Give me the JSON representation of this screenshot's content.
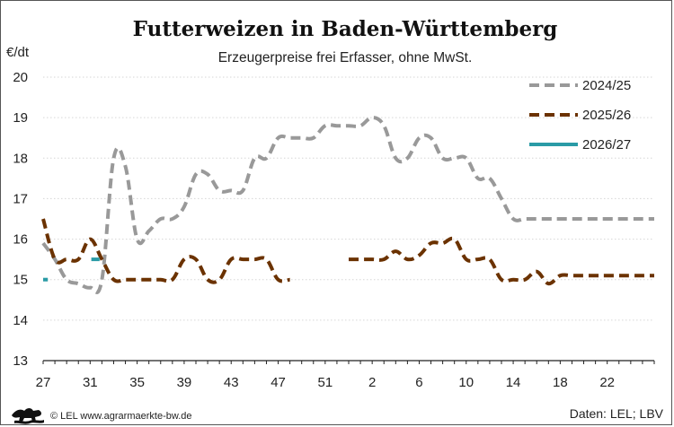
{
  "chart_data": {
    "type": "line",
    "title": "Futterweizen in Baden-Württemberg",
    "subtitle": "Erzeugerpreise frei Erfasser, ohne MwSt.",
    "ylabel": "€/dt",
    "ylim": [
      13,
      20
    ],
    "yticks": [
      13,
      14,
      15,
      16,
      17,
      18,
      19,
      20
    ],
    "xlabel": "",
    "x_index_range": [
      0,
      52
    ],
    "x_tick_indices": [
      0,
      4,
      8,
      12,
      16,
      20,
      24,
      28,
      32,
      36,
      40,
      44,
      48
    ],
    "x_tick_labels": [
      "27",
      "31",
      "35",
      "39",
      "43",
      "47",
      "51",
      "2",
      "6",
      "10",
      "14",
      "18",
      "22"
    ],
    "grid": "horizontal dotted",
    "legend_position": "top-right",
    "series": [
      {
        "name": "2024/25",
        "color": "#999999",
        "style": "dashed",
        "points": [
          [
            0,
            15.9
          ],
          [
            1,
            15.5
          ],
          [
            2,
            15.0
          ],
          [
            3,
            14.9
          ],
          [
            4,
            14.8
          ],
          [
            5,
            15.0
          ],
          [
            6,
            18.0
          ],
          [
            7,
            17.8
          ],
          [
            8,
            16.0
          ],
          [
            9,
            16.2
          ],
          [
            10,
            16.5
          ],
          [
            11,
            16.5
          ],
          [
            12,
            16.8
          ],
          [
            13,
            17.6
          ],
          [
            14,
            17.6
          ],
          [
            15,
            17.2
          ],
          [
            16,
            17.2
          ],
          [
            17,
            17.2
          ],
          [
            18,
            18.0
          ],
          [
            19,
            18.0
          ],
          [
            20,
            18.5
          ],
          [
            21,
            18.5
          ],
          [
            22,
            18.5
          ],
          [
            23,
            18.5
          ],
          [
            24,
            18.8
          ],
          [
            25,
            18.8
          ],
          [
            26,
            18.8
          ],
          [
            27,
            18.8
          ],
          [
            28,
            19.0
          ],
          [
            29,
            18.8
          ],
          [
            30,
            18.0
          ],
          [
            31,
            18.0
          ],
          [
            32,
            18.5
          ],
          [
            33,
            18.5
          ],
          [
            34,
            18.0
          ],
          [
            35,
            18.0
          ],
          [
            36,
            18.0
          ],
          [
            37,
            17.5
          ],
          [
            38,
            17.5
          ],
          [
            39,
            17.0
          ],
          [
            40,
            16.5
          ],
          [
            41,
            16.5
          ],
          [
            42,
            16.5
          ],
          [
            43,
            16.5
          ],
          [
            44,
            16.5
          ],
          [
            45,
            16.5
          ],
          [
            46,
            16.5
          ],
          [
            47,
            16.5
          ],
          [
            48,
            16.5
          ],
          [
            49,
            16.5
          ],
          [
            50,
            16.5
          ],
          [
            51,
            16.5
          ],
          [
            52,
            16.5
          ]
        ]
      },
      {
        "name": "2025/26",
        "color": "#6b3200",
        "style": "dashed",
        "points": [
          [
            0,
            16.5
          ],
          [
            1,
            15.5
          ],
          [
            2,
            15.5
          ],
          [
            3,
            15.5
          ],
          [
            4,
            16.0
          ],
          [
            5,
            15.5
          ],
          [
            6,
            15.0
          ],
          [
            7,
            15.0
          ],
          [
            8,
            15.0
          ],
          [
            9,
            15.0
          ],
          [
            10,
            15.0
          ],
          [
            11,
            15.0
          ],
          [
            12,
            15.5
          ],
          [
            13,
            15.5
          ],
          [
            14,
            15.0
          ],
          [
            15,
            15.0
          ],
          [
            16,
            15.5
          ],
          [
            17,
            15.5
          ],
          [
            18,
            15.5
          ],
          [
            19,
            15.5
          ],
          [
            20,
            15.0
          ],
          [
            21,
            15.0
          ],
          null,
          [
            26,
            15.5
          ],
          [
            27,
            15.5
          ],
          [
            28,
            15.5
          ],
          [
            29,
            15.5
          ],
          [
            30,
            15.7
          ],
          [
            31,
            15.5
          ],
          [
            32,
            15.6
          ],
          [
            33,
            15.9
          ],
          [
            34,
            15.9
          ],
          [
            35,
            16.0
          ],
          [
            36,
            15.5
          ],
          [
            37,
            15.5
          ],
          [
            38,
            15.5
          ],
          [
            39,
            15.0
          ],
          [
            40,
            15.0
          ],
          [
            41,
            15.0
          ],
          [
            42,
            15.2
          ],
          [
            43,
            14.9
          ],
          [
            44,
            15.1
          ],
          [
            45,
            15.1
          ],
          [
            46,
            15.1
          ],
          [
            47,
            15.1
          ],
          [
            48,
            15.1
          ],
          [
            49,
            15.1
          ],
          [
            50,
            15.1
          ],
          [
            51,
            15.1
          ],
          [
            52,
            15.1
          ]
        ]
      },
      {
        "name": "2026/27",
        "color": "#2a9ba6",
        "style": "solid",
        "points": [
          [
            0,
            15.0
          ],
          [
            0.4,
            15.0
          ],
          null,
          [
            4.1,
            15.5
          ],
          [
            4.8,
            15.5
          ]
        ]
      }
    ]
  },
  "footer": {
    "logo_icon": "baden-wuerttemberg-lion-logo",
    "copyright": "© LEL www.agrarmaerkte-bw.de",
    "source": "Daten: LEL; LBV"
  }
}
